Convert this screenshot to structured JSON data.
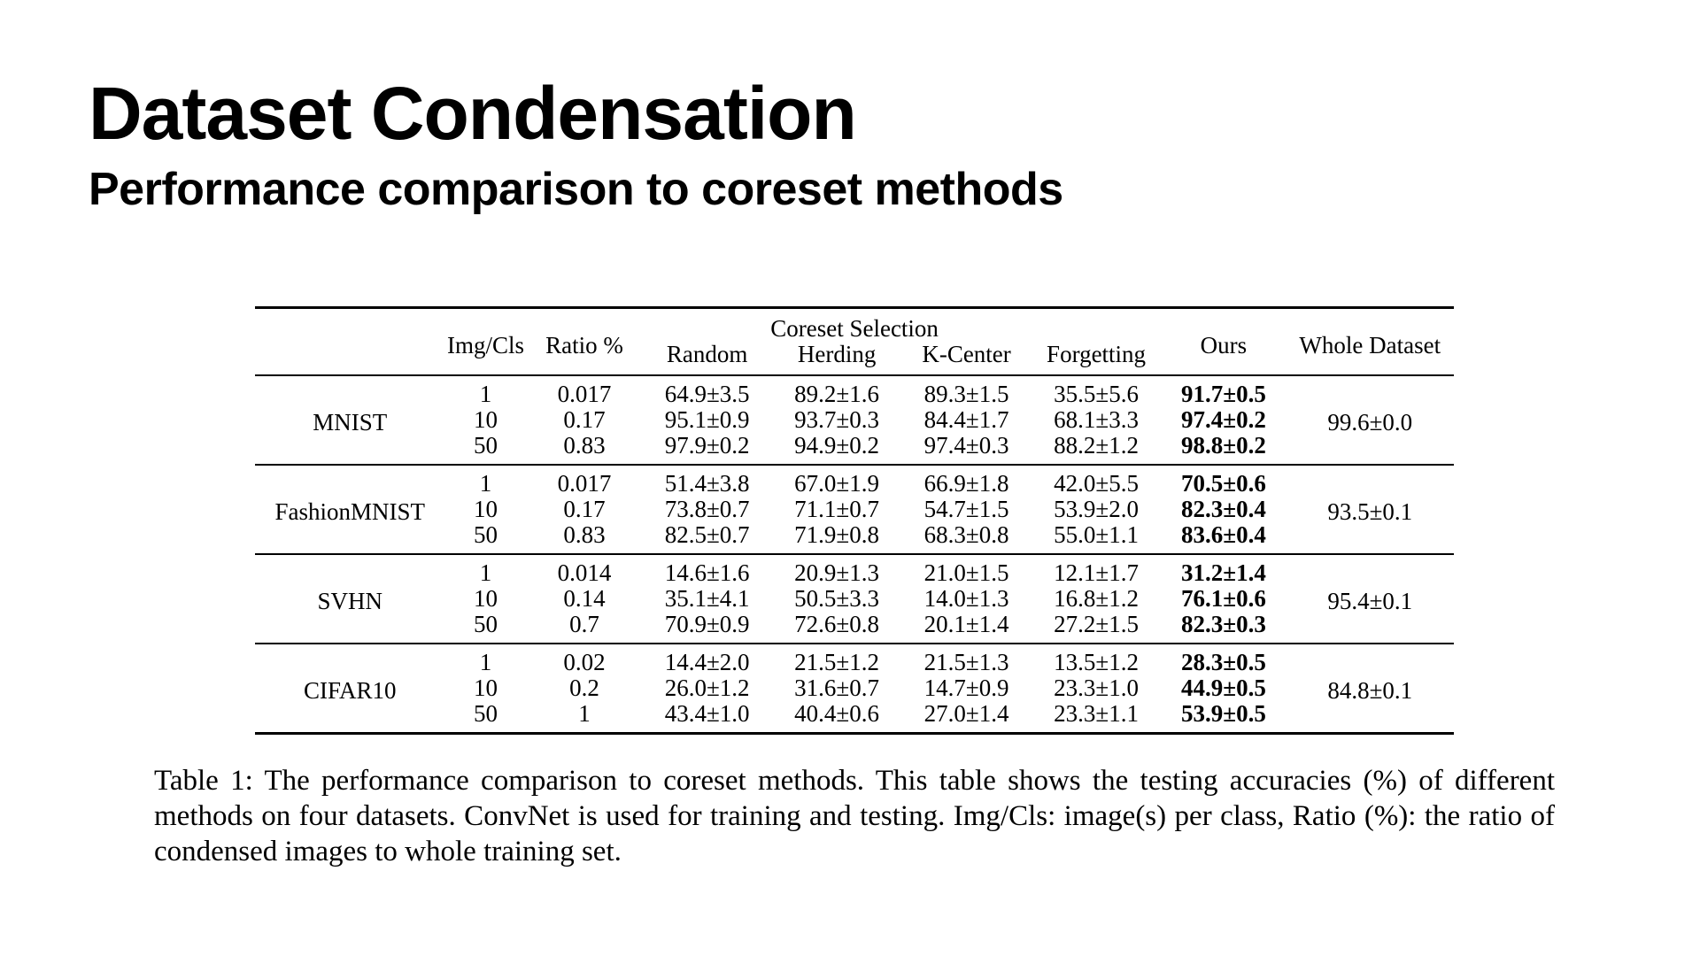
{
  "slide": {
    "title": "Dataset Condensation",
    "subtitle": "Performance comparison to coreset methods"
  },
  "table": {
    "headers": {
      "img_per_class": "Img/Cls",
      "ratio": "Ratio %",
      "coreset_group": "Coreset Selection",
      "random": "Random",
      "herding": "Herding",
      "kcenter": "K-Center",
      "forgetting": "Forgetting",
      "ours": "Ours",
      "whole": "Whole Dataset"
    },
    "groups": [
      {
        "dataset": "MNIST",
        "whole": "99.6±0.0",
        "rows": [
          {
            "ipc": "1",
            "ratio": "0.017",
            "random": "64.9±3.5",
            "herding": "89.2±1.6",
            "kcenter": "89.3±1.5",
            "forgetting": "35.5±5.6",
            "ours": "91.7±0.5"
          },
          {
            "ipc": "10",
            "ratio": "0.17",
            "random": "95.1±0.9",
            "herding": "93.7±0.3",
            "kcenter": "84.4±1.7",
            "forgetting": "68.1±3.3",
            "ours": "97.4±0.2"
          },
          {
            "ipc": "50",
            "ratio": "0.83",
            "random": "97.9±0.2",
            "herding": "94.9±0.2",
            "kcenter": "97.4±0.3",
            "forgetting": "88.2±1.2",
            "ours": "98.8±0.2"
          }
        ]
      },
      {
        "dataset": "FashionMNIST",
        "whole": "93.5±0.1",
        "rows": [
          {
            "ipc": "1",
            "ratio": "0.017",
            "random": "51.4±3.8",
            "herding": "67.0±1.9",
            "kcenter": "66.9±1.8",
            "forgetting": "42.0±5.5",
            "ours": "70.5±0.6"
          },
          {
            "ipc": "10",
            "ratio": "0.17",
            "random": "73.8±0.7",
            "herding": "71.1±0.7",
            "kcenter": "54.7±1.5",
            "forgetting": "53.9±2.0",
            "ours": "82.3±0.4"
          },
          {
            "ipc": "50",
            "ratio": "0.83",
            "random": "82.5±0.7",
            "herding": "71.9±0.8",
            "kcenter": "68.3±0.8",
            "forgetting": "55.0±1.1",
            "ours": "83.6±0.4"
          }
        ]
      },
      {
        "dataset": "SVHN",
        "whole": "95.4±0.1",
        "rows": [
          {
            "ipc": "1",
            "ratio": "0.014",
            "random": "14.6±1.6",
            "herding": "20.9±1.3",
            "kcenter": "21.0±1.5",
            "forgetting": "12.1±1.7",
            "ours": "31.2±1.4"
          },
          {
            "ipc": "10",
            "ratio": "0.14",
            "random": "35.1±4.1",
            "herding": "50.5±3.3",
            "kcenter": "14.0±1.3",
            "forgetting": "16.8±1.2",
            "ours": "76.1±0.6"
          },
          {
            "ipc": "50",
            "ratio": "0.7",
            "random": "70.9±0.9",
            "herding": "72.6±0.8",
            "kcenter": "20.1±1.4",
            "forgetting": "27.2±1.5",
            "ours": "82.3±0.3"
          }
        ]
      },
      {
        "dataset": "CIFAR10",
        "whole": "84.8±0.1",
        "rows": [
          {
            "ipc": "1",
            "ratio": "0.02",
            "random": "14.4±2.0",
            "herding": "21.5±1.2",
            "kcenter": "21.5±1.3",
            "forgetting": "13.5±1.2",
            "ours": "28.3±0.5"
          },
          {
            "ipc": "10",
            "ratio": "0.2",
            "random": "26.0±1.2",
            "herding": "31.6±0.7",
            "kcenter": "14.7±0.9",
            "forgetting": "23.3±1.0",
            "ours": "44.9±0.5"
          },
          {
            "ipc": "50",
            "ratio": "1",
            "random": "43.4±1.0",
            "herding": "40.4±0.6",
            "kcenter": "27.0±1.4",
            "forgetting": "23.3±1.1",
            "ours": "53.9±0.5"
          }
        ]
      }
    ]
  },
  "caption": "Table 1: The performance comparison to coreset methods. This table shows the testing accuracies (%) of different methods on four datasets. ConvNet is used for training and testing. Img/Cls: image(s) per class, Ratio (%): the ratio of condensed images to whole training set."
}
